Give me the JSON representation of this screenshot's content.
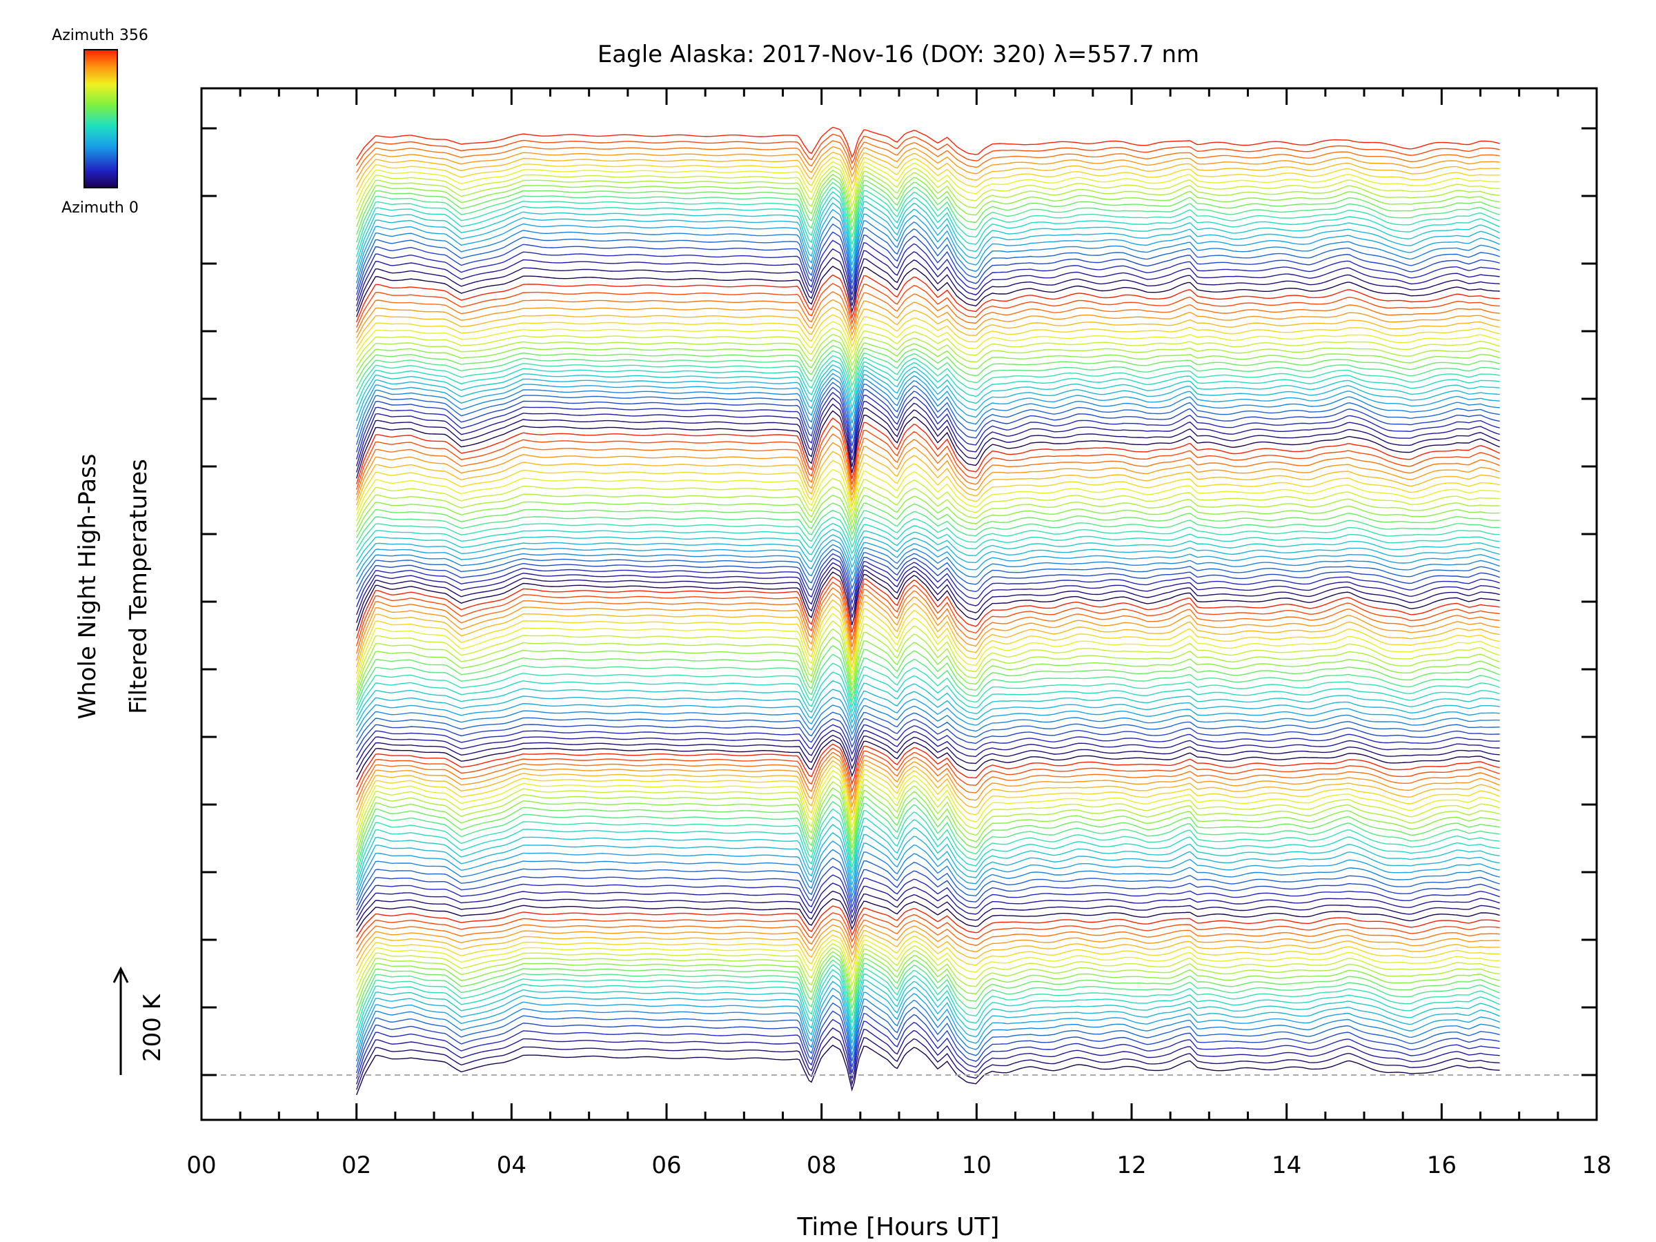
{
  "chart_data": {
    "type": "line",
    "title": "Eagle Alaska: 2017-Nov-16 (DOY: 320) λ=557.7 nm",
    "xlabel": "Time [Hours UT]",
    "ylabel_line1": "Whole Night High-Pass",
    "ylabel_line2": "Filtered Temperatures",
    "xlim": [
      0,
      18
    ],
    "x_ticks": [
      "00",
      "02",
      "04",
      "06",
      "08",
      "10",
      "12",
      "14",
      "16",
      "18"
    ],
    "x_tick_values": [
      0,
      2,
      4,
      6,
      8,
      10,
      12,
      14,
      16,
      18
    ],
    "scale_bar_label": "200 K",
    "colorbar": {
      "top_label": "Azimuth 356",
      "bottom_label": "Azimuth 0",
      "colormap": "rainbow",
      "min": 0,
      "max": 356
    },
    "n_traces": 144,
    "azimuth_cycle": 24,
    "time_range": [
      2.0,
      16.75
    ],
    "profile_times": [
      2.0,
      2.1,
      2.25,
      2.45,
      2.7,
      2.9,
      3.15,
      3.35,
      3.55,
      3.9,
      4.15,
      4.4,
      7.7,
      7.78,
      7.86,
      8.0,
      8.14,
      8.25,
      8.33,
      8.4,
      8.47,
      8.55,
      8.7,
      8.85,
      8.97,
      9.08,
      9.2,
      9.35,
      9.5,
      9.62,
      9.75,
      9.88,
      10.0,
      10.1,
      10.2,
      10.4,
      10.7,
      11.0,
      11.3,
      11.6,
      11.9,
      12.2,
      12.5,
      12.75,
      12.85,
      13.0,
      13.3,
      13.6,
      14.0,
      14.3,
      14.6,
      14.8,
      15.0,
      15.3,
      15.6,
      15.9,
      16.2,
      16.35,
      16.5,
      16.75
    ],
    "profile_values": [
      -60,
      0,
      60,
      50,
      55,
      45,
      40,
      12,
      22,
      40,
      62,
      58,
      55,
      10,
      -30,
      55,
      95,
      80,
      20,
      -55,
      40,
      90,
      70,
      50,
      20,
      65,
      85,
      60,
      20,
      45,
      0,
      -25,
      -30,
      0,
      15,
      10,
      22,
      18,
      28,
      22,
      25,
      15,
      22,
      40,
      20,
      20,
      15,
      20,
      22,
      18,
      30,
      40,
      28,
      10,
      0,
      15,
      25,
      20,
      28,
      15
    ],
    "baseline_style": "dashed"
  }
}
